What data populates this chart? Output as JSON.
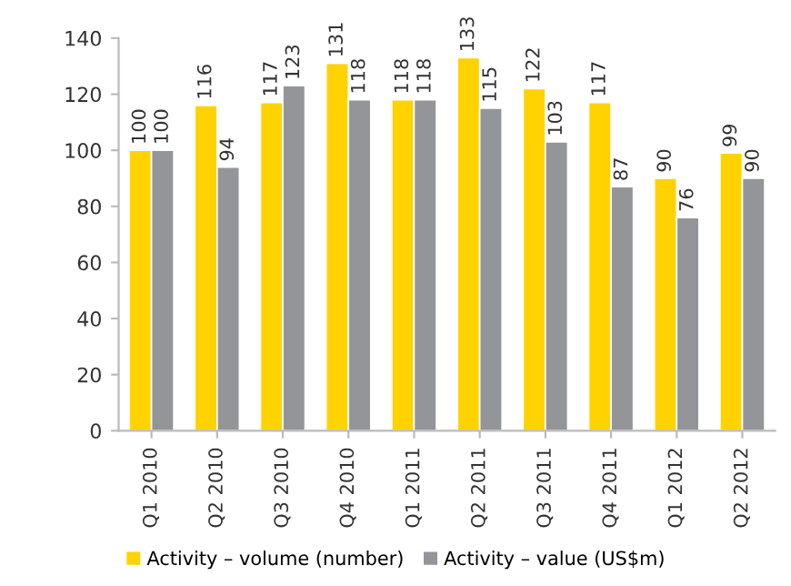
{
  "chart_data": {
    "type": "bar",
    "categories": [
      "Q1 2010",
      "Q2 2010",
      "Q3 2010",
      "Q4 2010",
      "Q1 2011",
      "Q2 2011",
      "Q3 2011",
      "Q4 2011",
      "Q1 2012",
      "Q2 2012"
    ],
    "series": [
      {
        "name": "Activity – volume (number)",
        "color": "#ffd200",
        "values": [
          100,
          116,
          117,
          131,
          118,
          133,
          122,
          117,
          90,
          99
        ]
      },
      {
        "name": "Activity – value (US$m)",
        "color": "#939598",
        "values": [
          100,
          94,
          123,
          118,
          118,
          115,
          103,
          87,
          76,
          90
        ]
      }
    ],
    "ylim": [
      0,
      140
    ],
    "yticks": [
      0,
      20,
      40,
      60,
      80,
      100,
      120,
      140
    ],
    "data_labels": true,
    "grid": false,
    "legend": "bottom"
  }
}
